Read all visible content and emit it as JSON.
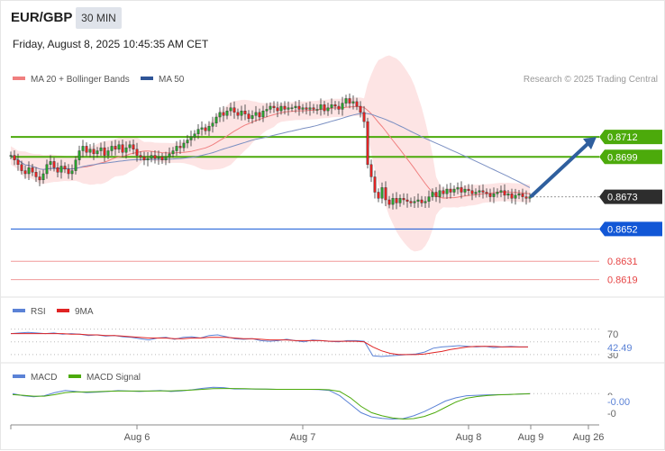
{
  "header": {
    "symbol": "EUR/GBP",
    "timeframe": "30 MIN",
    "datetime": "Friday, August 8, 2025 10:45:35 AM CET"
  },
  "colors": {
    "ma20": "#f07f7f",
    "ma50": "#2f5597",
    "bollinger_fill": "#fde4e4",
    "resistance": "#4caa0b",
    "support_blue": "#1257d6",
    "support_red": "#e64545",
    "current_price": "#2d2d2d",
    "arrow": "#2f5f9e",
    "candle_up": "#28a02e",
    "candle_down": "#e02424",
    "rsi": "#5b82d6",
    "rsi_ma": "#e02424",
    "macd": "#5b82d6",
    "macd_signal": "#4caa0b"
  },
  "chart_data": [
    {
      "type": "candlestick",
      "title": "",
      "legend": [
        {
          "name": "MA 20 + Bollinger Bands",
          "color": "#f07f7f"
        },
        {
          "name": "MA 50",
          "color": "#2f5597"
        }
      ],
      "legend_position": "top-left",
      "watermark": "Research © 2025 Trading Central",
      "ylim": [
        0.861,
        0.8742
      ],
      "x_tick_labels": [
        "Aug 6",
        "Aug 7",
        "Aug 8",
        "Aug 9",
        "Aug 26"
      ],
      "current_price": 0.8673,
      "levels": [
        {
          "label": "0.8712",
          "value": 0.8712,
          "kind": "resistance"
        },
        {
          "label": "0.8699",
          "value": 0.8699,
          "kind": "resistance"
        },
        {
          "label": "0.8673",
          "value": 0.8673,
          "kind": "current"
        },
        {
          "label": "0.8652",
          "value": 0.8652,
          "kind": "support"
        },
        {
          "label": "0.8631",
          "value": 0.8631,
          "kind": "support-red"
        },
        {
          "label": "0.8619",
          "value": 0.8619,
          "kind": "support-red"
        }
      ],
      "forecast_arrow": {
        "from": 0.8673,
        "to": 0.8712
      },
      "close_series": [
        0.87,
        0.8697,
        0.8694,
        0.869,
        0.8688,
        0.8692,
        0.8689,
        0.8686,
        0.8684,
        0.8688,
        0.8694,
        0.8696,
        0.8692,
        0.8689,
        0.8693,
        0.8691,
        0.8688,
        0.869,
        0.8697,
        0.8703,
        0.8706,
        0.8702,
        0.8704,
        0.8701,
        0.8703,
        0.8705,
        0.87,
        0.8703,
        0.8706,
        0.8704,
        0.8707,
        0.8702,
        0.8705,
        0.8707,
        0.8704,
        0.87,
        0.8699,
        0.8697,
        0.8698,
        0.87,
        0.8698,
        0.8699,
        0.8697,
        0.8699,
        0.8701,
        0.8703,
        0.8706,
        0.8705,
        0.8708,
        0.871,
        0.8712,
        0.8714,
        0.8717,
        0.8718,
        0.8716,
        0.8719,
        0.8721,
        0.8725,
        0.8728,
        0.8726,
        0.8729,
        0.8731,
        0.8728,
        0.8726,
        0.8729,
        0.8727,
        0.8724,
        0.8726,
        0.8728,
        0.8725,
        0.8729,
        0.873,
        0.8732,
        0.8731,
        0.8729,
        0.8732,
        0.873,
        0.8731,
        0.8731,
        0.8732,
        0.873,
        0.8731,
        0.873,
        0.8731,
        0.873,
        0.873,
        0.8733,
        0.8729,
        0.8731,
        0.8733,
        0.8732,
        0.873,
        0.8734,
        0.8737,
        0.8734,
        0.8735,
        0.8732,
        0.8728,
        0.8722,
        0.8694,
        0.8686,
        0.8676,
        0.8672,
        0.8679,
        0.8671,
        0.8668,
        0.8672,
        0.8669,
        0.8672,
        0.8671,
        0.867,
        0.8669,
        0.867,
        0.8671,
        0.8669,
        0.867,
        0.8673,
        0.8676,
        0.8673,
        0.8677,
        0.8675,
        0.8678,
        0.8676,
        0.8678,
        0.8679,
        0.8676,
        0.8678,
        0.8677,
        0.8675,
        0.8676,
        0.8677,
        0.8676,
        0.8675,
        0.8673,
        0.8675,
        0.8676,
        0.8677,
        0.8674,
        0.8675,
        0.8672,
        0.8674,
        0.8675,
        0.8673,
        0.8672,
        0.8673
      ]
    },
    {
      "type": "line",
      "legend": [
        {
          "name": "RSI",
          "color": "#5b82d6"
        },
        {
          "name": "9MA",
          "color": "#e02424"
        }
      ],
      "y_tick_labels": [
        "70",
        "30"
      ],
      "last_value_label": "42.49",
      "ylim": [
        20,
        85
      ],
      "levels": [
        70,
        50,
        30
      ],
      "series": [
        {
          "name": "RSI",
          "values": [
            63,
            64,
            65,
            64,
            63,
            64,
            62,
            63,
            62,
            60,
            61,
            59,
            60,
            58,
            57,
            55,
            53,
            56,
            57,
            54,
            57,
            58,
            56,
            60,
            61,
            58,
            55,
            54,
            55,
            52,
            51,
            52,
            54,
            52,
            50,
            53,
            52,
            51,
            50,
            52,
            52,
            51,
            28,
            27,
            28,
            29,
            30,
            31,
            34,
            40,
            42,
            43,
            44,
            43,
            42,
            43,
            41,
            42,
            43,
            42,
            42
          ]
        },
        {
          "name": "9MA",
          "values": [
            63,
            63,
            63,
            63,
            63,
            63,
            63,
            62,
            62,
            61,
            61,
            60,
            60,
            59,
            58,
            57,
            56,
            56,
            56,
            55,
            55,
            56,
            56,
            57,
            57,
            57,
            56,
            55,
            55,
            54,
            53,
            53,
            53,
            52,
            52,
            52,
            52,
            51,
            51,
            51,
            51,
            50,
            42,
            36,
            32,
            30,
            30,
            30,
            31,
            33,
            35,
            38,
            40,
            42,
            43,
            43,
            43,
            42,
            42,
            42,
            42
          ]
        }
      ]
    },
    {
      "type": "line",
      "legend": [
        {
          "name": "MACD",
          "color": "#5b82d6"
        },
        {
          "name": "MACD Signal",
          "color": "#4caa0b"
        }
      ],
      "y_tick_labels": [
        "0",
        "-0"
      ],
      "last_value_label": "-0.00",
      "ylim": [
        -1.35,
        0.35
      ],
      "series": [
        {
          "name": "MACD",
          "values": [
            0.0,
            -0.1,
            -0.15,
            -0.1,
            0.05,
            0.15,
            0.1,
            0.05,
            0.07,
            0.1,
            0.14,
            0.12,
            0.1,
            0.12,
            0.15,
            0.1,
            0.13,
            0.18,
            0.25,
            0.3,
            0.28,
            0.22,
            0.22,
            0.21,
            0.21,
            0.2,
            0.2,
            0.2,
            0.2,
            0.19,
            0.15,
            -0.1,
            -0.5,
            -0.9,
            -1.1,
            -1.17,
            -1.2,
            -1.18,
            -1.05,
            -0.85,
            -0.6,
            -0.35,
            -0.2,
            -0.1,
            -0.08,
            -0.06,
            -0.05,
            -0.04,
            -0.02,
            0.0
          ]
        },
        {
          "name": "MACD Signal",
          "values": [
            -0.05,
            -0.08,
            -0.12,
            -0.12,
            -0.05,
            0.05,
            0.08,
            0.08,
            0.09,
            0.11,
            0.12,
            0.12,
            0.12,
            0.12,
            0.13,
            0.13,
            0.15,
            0.17,
            0.2,
            0.23,
            0.24,
            0.24,
            0.23,
            0.22,
            0.21,
            0.2,
            0.2,
            0.2,
            0.2,
            0.2,
            0.18,
            0.1,
            -0.2,
            -0.6,
            -0.9,
            -1.05,
            -1.15,
            -1.2,
            -1.18,
            -1.08,
            -0.9,
            -0.65,
            -0.4,
            -0.22,
            -0.14,
            -0.09,
            -0.06,
            -0.04,
            -0.02,
            -0.01
          ]
        }
      ]
    }
  ]
}
